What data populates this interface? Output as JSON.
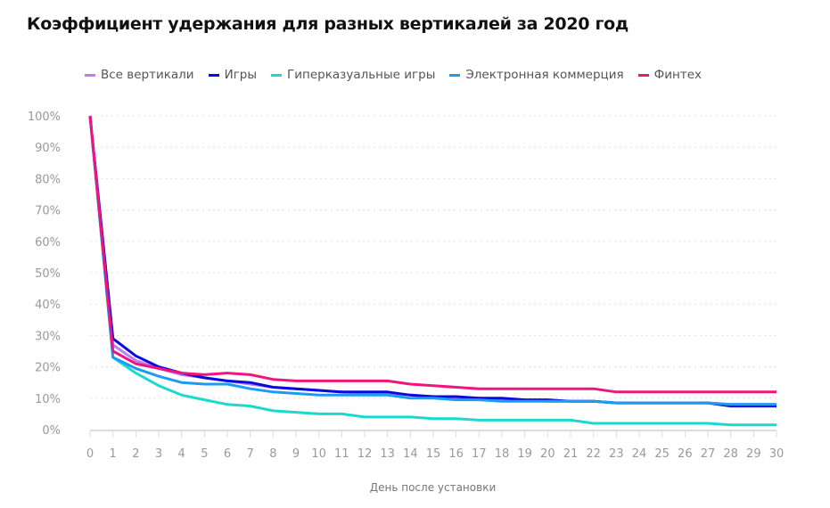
{
  "chart_data": {
    "type": "line",
    "title": "Коэффициент удержания для разных вертикалей за 2020 год",
    "xlabel": "День после установки",
    "ylabel": "",
    "x": [
      0,
      1,
      2,
      3,
      4,
      5,
      6,
      7,
      8,
      9,
      10,
      11,
      12,
      13,
      14,
      15,
      16,
      17,
      18,
      19,
      20,
      21,
      22,
      23,
      24,
      25,
      26,
      27,
      28,
      29,
      30
    ],
    "xlim": [
      0,
      30
    ],
    "ylim": [
      0,
      100
    ],
    "yticks": [
      "0%",
      "10%",
      "20%",
      "30%",
      "40%",
      "50%",
      "60%",
      "70%",
      "80%",
      "90%",
      "100%"
    ],
    "grid": true,
    "legend_position": "top",
    "series": [
      {
        "name": "Все вертикали",
        "color": "#b87ef2",
        "values": [
          100,
          27,
          22,
          19.5,
          17.5,
          16.5,
          15.5,
          14.5,
          13.5,
          13,
          12.5,
          12,
          11.5,
          11.5,
          11,
          10.5,
          10,
          10,
          9.5,
          9.5,
          9,
          9,
          9,
          8.5,
          8.5,
          8.5,
          8.5,
          8.5,
          8,
          8,
          8
        ]
      },
      {
        "name": "Игры",
        "color": "#0a0ae0",
        "values": [
          100,
          29,
          23.5,
          20,
          18,
          16.5,
          15.5,
          15,
          13.5,
          13,
          12.5,
          12,
          12,
          12,
          11,
          10.5,
          10.5,
          10,
          10,
          9.5,
          9.5,
          9,
          9,
          8.5,
          8.5,
          8.5,
          8.5,
          8.5,
          7.5,
          7.5,
          7.5
        ]
      },
      {
        "name": "Гиперказуальные игры",
        "color": "#1cd9d0",
        "values": [
          100,
          23,
          18,
          14,
          11,
          9.5,
          8,
          7.5,
          6,
          5.5,
          5,
          5,
          4,
          4,
          4,
          3.5,
          3.5,
          3,
          3,
          3,
          3,
          3,
          2,
          2,
          2,
          2,
          2,
          2,
          1.5,
          1.5,
          1.5
        ]
      },
      {
        "name": "Электронная коммерция",
        "color": "#1a9cf2",
        "values": [
          100,
          23,
          19.5,
          17,
          15,
          14.5,
          14.5,
          13,
          12,
          11.5,
          11,
          11,
          11,
          11,
          10,
          10,
          9.5,
          9.5,
          9,
          9,
          9,
          9,
          9,
          8.5,
          8.5,
          8.5,
          8.5,
          8.5,
          8,
          8,
          8
        ]
      },
      {
        "name": "Финтех",
        "color": "#f0147c",
        "values": [
          100,
          25,
          21,
          19.5,
          18,
          17.5,
          18,
          17.5,
          16,
          15.5,
          15.5,
          15.5,
          15.5,
          15.5,
          14.5,
          14,
          13.5,
          13,
          13,
          13,
          13,
          13,
          13,
          12,
          12,
          12,
          12,
          12,
          12,
          12,
          12
        ]
      }
    ]
  }
}
